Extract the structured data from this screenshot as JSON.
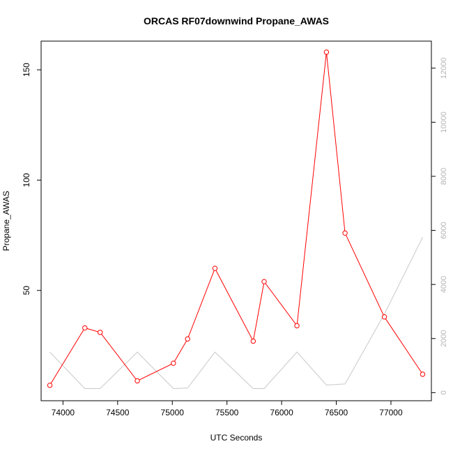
{
  "chart_data": {
    "type": "line",
    "title": "ORCAS RF07downwind Propane_AWAS",
    "xlabel": "UTC Seconds",
    "ylabel": "Propane_AWAS",
    "xlim": [
      73800,
      77370
    ],
    "ylim": [
      0,
      163
    ],
    "y2lim": [
      -300,
      13000
    ],
    "x_ticks": [
      74000,
      74500,
      75000,
      75500,
      76000,
      76500,
      77000
    ],
    "y_ticks": [
      50,
      100,
      150
    ],
    "y2_ticks": [
      0,
      2000,
      4000,
      6000,
      8000,
      10000,
      12000
    ],
    "grid": false,
    "series": [
      {
        "color": "#ff0000",
        "axis": "left",
        "marker": "circle",
        "x": [
          73880,
          74200,
          74340,
          74680,
          75010,
          75140,
          75390,
          75740,
          75840,
          76140,
          76410,
          76580,
          76940,
          77290
        ],
        "y": [
          7,
          33,
          31,
          9,
          17,
          28,
          60,
          27,
          54,
          34,
          158,
          76,
          38,
          12
        ]
      },
      {
        "color": "#c8c8c8",
        "axis": "right",
        "marker": "none",
        "x": [
          73880,
          74200,
          74340,
          74680,
          75010,
          75140,
          75390,
          75740,
          75840,
          76140,
          76410,
          76580,
          76940,
          77290
        ],
        "y": [
          1500,
          150,
          150,
          1500,
          150,
          170,
          1500,
          150,
          150,
          1500,
          280,
          320,
          2900,
          5750
        ]
      }
    ]
  }
}
